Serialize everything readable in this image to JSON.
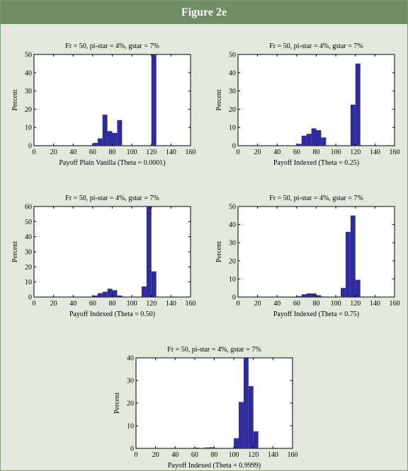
{
  "figure": {
    "title": "Figure 2e",
    "colors": {
      "header": "#6f8e67",
      "background": "#e3eadd",
      "bar": "#2e2c9c"
    }
  },
  "chart_data": [
    {
      "type": "bar",
      "title": "Fr = 50, pi-star = 4%, gstar = 7%",
      "xlabel": "Payoff Plain Vanilla (Theta = 0.0001)",
      "ylabel": "Percent",
      "xlim": [
        0,
        160
      ],
      "ylim": [
        0,
        50
      ],
      "xticks": [
        0,
        20,
        40,
        60,
        80,
        100,
        120,
        140,
        160
      ],
      "yticks": [
        0,
        10,
        20,
        30,
        40,
        50
      ],
      "bin_width": 5,
      "bins": [
        {
          "x": 60,
          "y": 1.5
        },
        {
          "x": 65,
          "y": 4
        },
        {
          "x": 70,
          "y": 17
        },
        {
          "x": 75,
          "y": 8
        },
        {
          "x": 80,
          "y": 7
        },
        {
          "x": 85,
          "y": 14
        },
        {
          "x": 120,
          "y": 50
        }
      ]
    },
    {
      "type": "bar",
      "title": "Fr = 50, pi-star = 4%, gstar = 7%",
      "xlabel": "Payoff Indexed (Theta = 0.25)",
      "ylabel": "Percent",
      "xlim": [
        0,
        160
      ],
      "ylim": [
        0,
        50
      ],
      "xticks": [
        0,
        20,
        40,
        60,
        80,
        100,
        120,
        140,
        160
      ],
      "yticks": [
        0,
        10,
        20,
        30,
        40,
        50
      ],
      "bin_width": 5,
      "bins": [
        {
          "x": 60,
          "y": 1
        },
        {
          "x": 65,
          "y": 5.5
        },
        {
          "x": 70,
          "y": 6.5
        },
        {
          "x": 75,
          "y": 9.5
        },
        {
          "x": 80,
          "y": 8.5
        },
        {
          "x": 85,
          "y": 4.5
        },
        {
          "x": 115,
          "y": 22.5
        },
        {
          "x": 120,
          "y": 45
        }
      ]
    },
    {
      "type": "bar",
      "title": "Fr = 50, pi-star = 4%, gstar = 7%",
      "xlabel": "Payoff Indexed (Theta = 0.50)",
      "ylabel": "Percent",
      "xlim": [
        0,
        160
      ],
      "ylim": [
        0,
        60
      ],
      "xticks": [
        0,
        20,
        40,
        60,
        80,
        100,
        120,
        140,
        160
      ],
      "yticks": [
        0,
        10,
        20,
        30,
        40,
        50,
        60
      ],
      "bin_width": 5,
      "bins": [
        {
          "x": 60,
          "y": 1
        },
        {
          "x": 65,
          "y": 2.5
        },
        {
          "x": 70,
          "y": 3.5
        },
        {
          "x": 75,
          "y": 5.5
        },
        {
          "x": 80,
          "y": 4.5
        },
        {
          "x": 85,
          "y": 1
        },
        {
          "x": 110,
          "y": 7
        },
        {
          "x": 115,
          "y": 60
        },
        {
          "x": 120,
          "y": 17
        }
      ]
    },
    {
      "type": "bar",
      "title": "Fr = 50, pi-star = 4%, gstar = 7%",
      "xlabel": "Payoff Indexed (Theta = 0.75)",
      "ylabel": "Percent",
      "xlim": [
        0,
        160
      ],
      "ylim": [
        0,
        50
      ],
      "xticks": [
        0,
        20,
        40,
        60,
        80,
        100,
        120,
        140,
        160
      ],
      "yticks": [
        0,
        10,
        20,
        30,
        40,
        50
      ],
      "bin_width": 5,
      "bins": [
        {
          "x": 60,
          "y": 0.5
        },
        {
          "x": 65,
          "y": 1.5
        },
        {
          "x": 70,
          "y": 2
        },
        {
          "x": 75,
          "y": 2
        },
        {
          "x": 80,
          "y": 1
        },
        {
          "x": 85,
          "y": 0.3
        },
        {
          "x": 105,
          "y": 5
        },
        {
          "x": 110,
          "y": 36
        },
        {
          "x": 115,
          "y": 45
        },
        {
          "x": 120,
          "y": 9.5
        }
      ]
    },
    {
      "type": "bar",
      "title": "Fr = 50, pi-star = 4%, gstar = 7%",
      "xlabel": "Payoff Indexed (Theta = 0.9999)",
      "ylabel": "Percent",
      "xlim": [
        0,
        160
      ],
      "ylim": [
        0,
        40
      ],
      "xticks": [
        0,
        20,
        40,
        60,
        80,
        100,
        120,
        140,
        160
      ],
      "yticks": [
        0,
        10,
        20,
        30,
        40
      ],
      "bin_width": 5,
      "bins": [
        {
          "x": 60,
          "y": 0.3
        },
        {
          "x": 70,
          "y": 0.4
        },
        {
          "x": 75,
          "y": 0.5
        },
        {
          "x": 100,
          "y": 4.5
        },
        {
          "x": 105,
          "y": 20.5
        },
        {
          "x": 110,
          "y": 40
        },
        {
          "x": 115,
          "y": 27.5
        },
        {
          "x": 120,
          "y": 7.5
        }
      ]
    }
  ]
}
